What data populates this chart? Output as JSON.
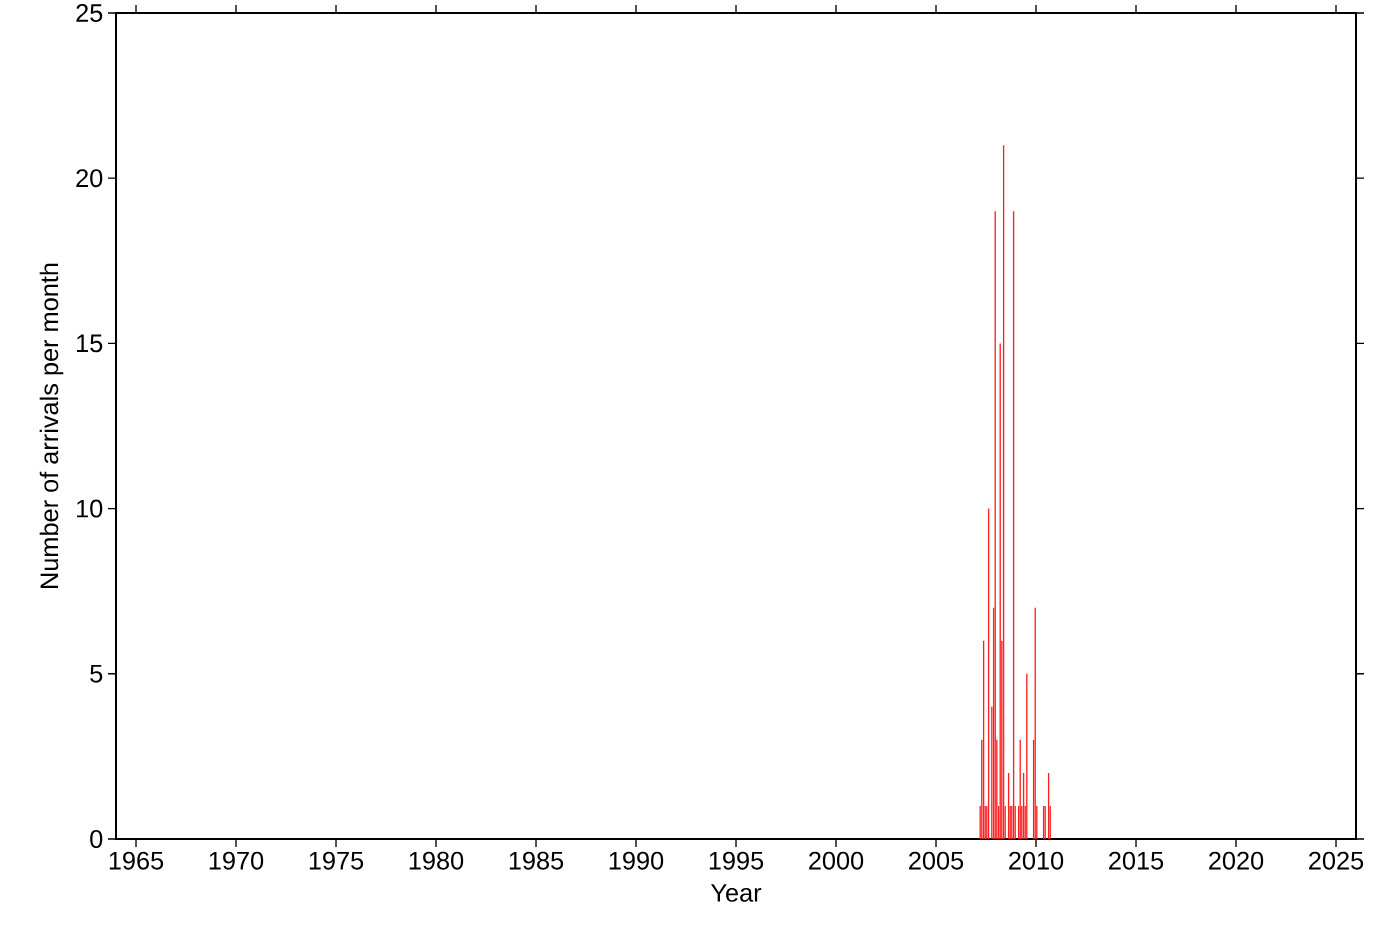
{
  "chart_data": {
    "type": "bar",
    "xlabel": "Year",
    "ylabel": "Number of arrivals per month",
    "x": [
      2007.21,
      2007.29,
      2007.38,
      2007.46,
      2007.54,
      2007.63,
      2007.79,
      2007.88,
      2007.96,
      2008.04,
      2008.13,
      2008.21,
      2008.29,
      2008.38,
      2008.46,
      2008.63,
      2008.71,
      2008.79,
      2008.88,
      2008.96,
      2009.13,
      2009.21,
      2009.29,
      2009.38,
      2009.46,
      2009.54,
      2009.88,
      2009.96,
      2010.04,
      2010.38,
      2010.46,
      2010.63,
      2010.71
    ],
    "values": [
      1,
      3,
      6,
      1,
      1,
      10,
      4,
      7,
      19,
      3,
      1,
      15,
      6,
      21,
      1,
      2,
      1,
      1,
      19,
      1,
      1,
      3,
      1,
      2,
      1,
      5,
      3,
      7,
      1,
      1,
      1,
      2,
      1
    ],
    "color": "#ff2020",
    "xlim": [
      1964,
      2026
    ],
    "xticks": [
      1965,
      1970,
      1975,
      1980,
      1985,
      1990,
      1995,
      2000,
      2005,
      2010,
      2015,
      2020,
      2025
    ],
    "ylim": [
      0,
      25
    ],
    "yticks": [
      0,
      5,
      10,
      15,
      20,
      25
    ],
    "grid": false
  }
}
